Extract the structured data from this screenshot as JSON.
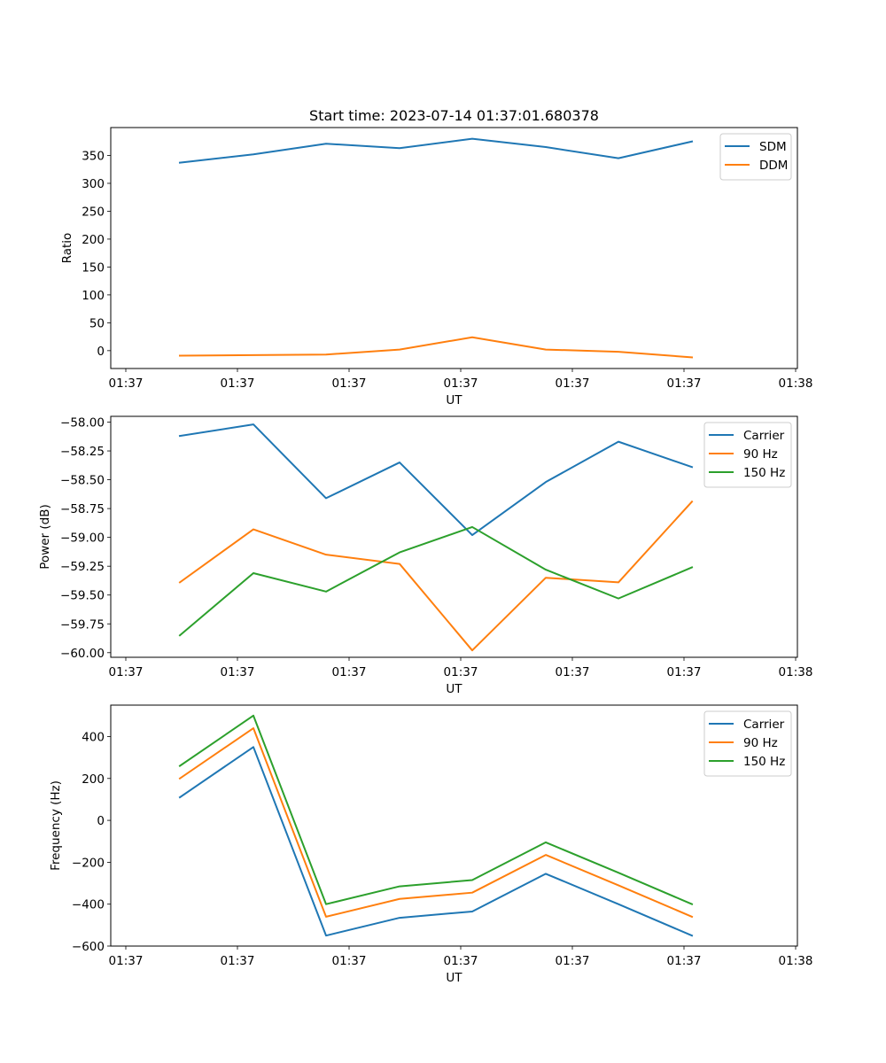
{
  "figure_title": "Start time: 2023-07-14 01:37:01.680378",
  "colors": {
    "blue": "#1f77b4",
    "orange": "#ff7f0e",
    "green": "#2ca02c"
  },
  "chart_data": [
    {
      "type": "line",
      "title": "Start time: 2023-07-14 01:37:01.680378",
      "xlabel": "UT",
      "ylabel": "Ratio",
      "x_tick_labels": [
        "01:37",
        "01:37",
        "01:37",
        "01:37",
        "01:37",
        "01:37",
        "01:38"
      ],
      "ylim": [
        -32,
        400
      ],
      "y_ticks": [
        0,
        50,
        100,
        150,
        200,
        250,
        300,
        350
      ],
      "y_tick_labels": [
        "0",
        "50",
        "100",
        "150",
        "200",
        "250",
        "300",
        "350"
      ],
      "legend_position": "top-right",
      "series": [
        {
          "name": "SDM",
          "color": "#1f77b4",
          "values": [
            337,
            352,
            371,
            363,
            380,
            365,
            345,
            375
          ]
        },
        {
          "name": "DDM",
          "color": "#ff7f0e",
          "values": [
            -9,
            -8,
            -7,
            2,
            24,
            2,
            -2,
            -12
          ]
        }
      ]
    },
    {
      "type": "line",
      "title": "",
      "xlabel": "UT",
      "ylabel": "Power (dB)",
      "x_tick_labels": [
        "01:37",
        "01:37",
        "01:37",
        "01:37",
        "01:37",
        "01:37",
        "01:38"
      ],
      "ylim": [
        -60.04,
        -57.95
      ],
      "y_ticks": [
        -60.0,
        -59.75,
        -59.5,
        -59.25,
        -59.0,
        -58.75,
        -58.5,
        -58.25,
        -58.0
      ],
      "y_tick_labels": [
        "−60.00",
        "−59.75",
        "−59.50",
        "−59.25",
        "−59.00",
        "−58.75",
        "−58.50",
        "−58.25",
        "−58.00"
      ],
      "legend_position": "top-right",
      "series": [
        {
          "name": "Carrier",
          "color": "#1f77b4",
          "values": [
            -58.12,
            -58.02,
            -58.66,
            -58.35,
            -58.98,
            -58.52,
            -58.17,
            -58.39
          ]
        },
        {
          "name": "90 Hz",
          "color": "#ff7f0e",
          "values": [
            -59.39,
            -58.93,
            -59.15,
            -59.23,
            -59.98,
            -59.35,
            -59.39,
            -58.69
          ]
        },
        {
          "name": "150 Hz",
          "color": "#2ca02c",
          "values": [
            -59.85,
            -59.31,
            -59.47,
            -59.13,
            -58.91,
            -59.28,
            -59.53,
            -59.26
          ]
        }
      ]
    },
    {
      "type": "line",
      "title": "",
      "xlabel": "UT",
      "ylabel": "Frequency (Hz)",
      "x_tick_labels": [
        "01:37",
        "01:37",
        "01:37",
        "01:37",
        "01:37",
        "01:37",
        "01:38"
      ],
      "ylim": [
        -600,
        550
      ],
      "y_ticks": [
        -600,
        -400,
        -200,
        0,
        200,
        400
      ],
      "y_tick_labels": [
        "−600",
        "−400",
        "−200",
        "0",
        "200",
        "400"
      ],
      "legend_position": "top-right",
      "series": [
        {
          "name": "Carrier",
          "color": "#1f77b4",
          "values": [
            110,
            350,
            -550,
            -465,
            -435,
            -255,
            -400,
            -550
          ]
        },
        {
          "name": "90 Hz",
          "color": "#ff7f0e",
          "values": [
            200,
            440,
            -460,
            -375,
            -345,
            -165,
            -310,
            -460
          ]
        },
        {
          "name": "150 Hz",
          "color": "#2ca02c",
          "values": [
            260,
            500,
            -400,
            -315,
            -285,
            -105,
            -250,
            -400
          ]
        }
      ]
    }
  ]
}
